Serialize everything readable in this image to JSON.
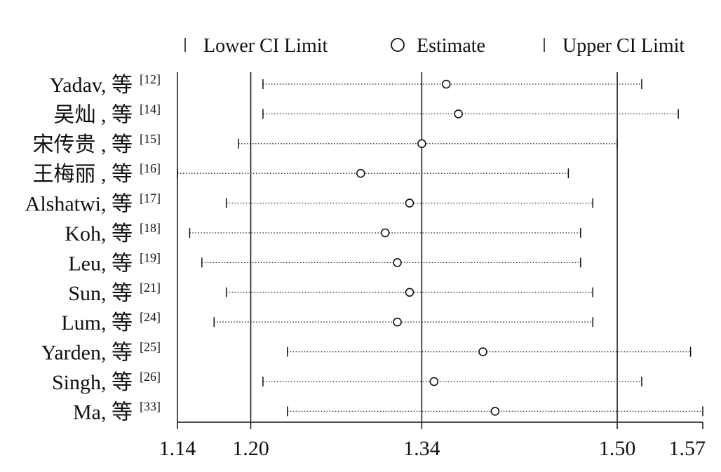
{
  "chart_data": {
    "type": "forest",
    "legend": {
      "lower": "Lower CI Limit",
      "estimate": "Estimate",
      "upper": "Upper CI Limit"
    },
    "xlim": [
      1.14,
      1.57
    ],
    "x_ticks": [
      {
        "value": 1.14,
        "label": "1.14"
      },
      {
        "value": 1.2,
        "label": "1.20"
      },
      {
        "value": 1.34,
        "label": "1.34"
      },
      {
        "value": 1.5,
        "label": "1.50"
      },
      {
        "value": 1.57,
        "label": "1.57"
      }
    ],
    "reference_lines": [
      1.2,
      1.34,
      1.5
    ],
    "studies": [
      {
        "name": "Yadav, 等",
        "ref": "[12]",
        "lower": 1.21,
        "estimate": 1.36,
        "upper": 1.52
      },
      {
        "name": "吴灿 , 等",
        "ref": "[14]",
        "lower": 1.21,
        "estimate": 1.37,
        "upper": 1.55
      },
      {
        "name": "宋传贵 , 等",
        "ref": "[15]",
        "lower": 1.19,
        "estimate": 1.34,
        "upper": 1.5
      },
      {
        "name": "王梅丽 , 等",
        "ref": "[16]",
        "lower": 1.14,
        "estimate": 1.29,
        "upper": 1.46
      },
      {
        "name": "Alshatwi, 等",
        "ref": "[17]",
        "lower": 1.18,
        "estimate": 1.33,
        "upper": 1.48
      },
      {
        "name": "Koh, 等",
        "ref": "[18]",
        "lower": 1.15,
        "estimate": 1.31,
        "upper": 1.47
      },
      {
        "name": "Leu, 等",
        "ref": "[19]",
        "lower": 1.16,
        "estimate": 1.32,
        "upper": 1.47
      },
      {
        "name": "Sun, 等",
        "ref": "[21]",
        "lower": 1.18,
        "estimate": 1.33,
        "upper": 1.48
      },
      {
        "name": "Lum, 等",
        "ref": "[24]",
        "lower": 1.17,
        "estimate": 1.32,
        "upper": 1.48
      },
      {
        "name": "Yarden, 等",
        "ref": "[25]",
        "lower": 1.23,
        "estimate": 1.39,
        "upper": 1.56
      },
      {
        "name": "Singh, 等",
        "ref": "[26]",
        "lower": 1.21,
        "estimate": 1.35,
        "upper": 1.52
      },
      {
        "name": "Ma, 等",
        "ref": "[33]",
        "lower": 1.23,
        "estimate": 1.4,
        "upper": 1.57
      }
    ]
  }
}
